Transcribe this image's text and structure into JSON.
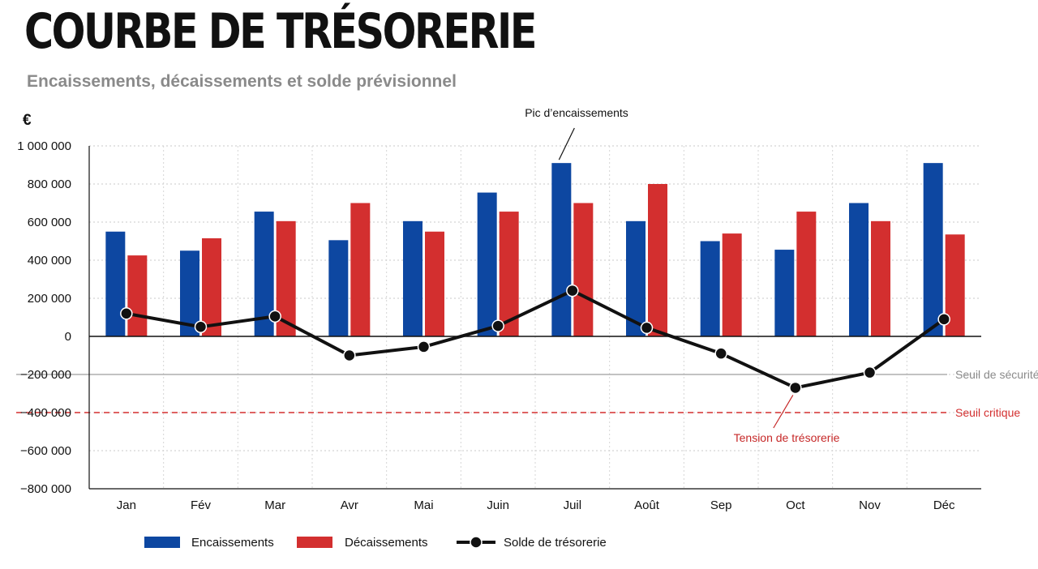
{
  "title": "COURBE DE TRÉSORERIE",
  "subtitle": "Encaissements, décaissements et solde prévisionnel",
  "colors": {
    "encaissements": "#0d47a1",
    "decaissements": "#d32f2f",
    "solde": "#111111",
    "seuil_securite": "#9e9e9e",
    "seuil_critique": "#d32f2f",
    "tension": "#c62828"
  },
  "chart_data": {
    "type": "bar",
    "categories": [
      "Jan",
      "Fév",
      "Mar",
      "Avr",
      "Mai",
      "Juin",
      "Juil",
      "Août",
      "Sep",
      "Oct",
      "Nov",
      "Déc"
    ],
    "series": [
      {
        "name": "Encaissements",
        "type": "bar",
        "values": [
          550000,
          450000,
          655000,
          505000,
          605000,
          755000,
          910000,
          605000,
          500000,
          455000,
          700000,
          910000
        ]
      },
      {
        "name": "Décaissements",
        "type": "bar",
        "values": [
          425000,
          515000,
          605000,
          700000,
          550000,
          655000,
          700000,
          800000,
          540000,
          655000,
          605000,
          535000
        ]
      },
      {
        "name": "Solde de trésorerie",
        "type": "line",
        "values": [
          120000,
          50000,
          105000,
          -100000,
          -55000,
          55000,
          240000,
          45000,
          -90000,
          -270000,
          -190000,
          90000
        ]
      }
    ],
    "ylabel": "€",
    "ylim": [
      -800000,
      1000000
    ],
    "yticks": [
      1000000,
      800000,
      600000,
      400000,
      200000,
      0,
      -200000,
      -400000,
      -600000,
      -800000
    ],
    "ytick_labels": [
      "1 000 000",
      "800 000",
      "600 000",
      "400 000",
      "200 000",
      "0",
      "−200 000",
      "−400 000",
      "−600 000",
      "−800 000"
    ],
    "grid": true,
    "legend": "bottom",
    "reference_lines": [
      {
        "label": "Seuil de sécurité",
        "value": -200000,
        "style": "solid"
      },
      {
        "label": "Seuil critique",
        "value": -400000,
        "style": "dashed"
      }
    ],
    "annotations": [
      {
        "text": "Pic d’encaissements",
        "category": "Juil"
      },
      {
        "text": "Tension de trésorerie",
        "category": "Oct"
      }
    ]
  }
}
